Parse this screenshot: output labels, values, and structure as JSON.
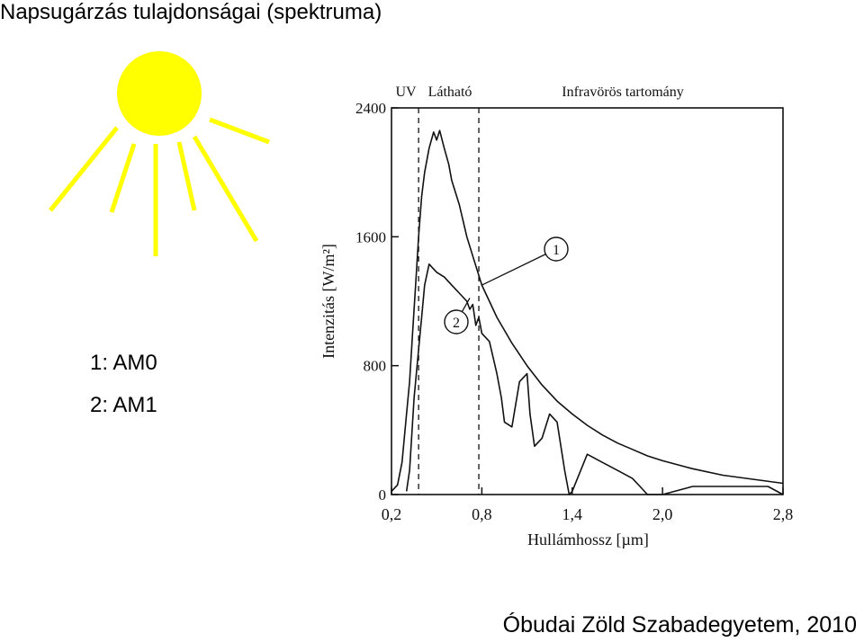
{
  "slide": {
    "title": "Napsugárzás tulajdonságai (spektruma)",
    "legend": [
      "1: AM0",
      "2: AM1"
    ],
    "footer": "Óbudai Zöld Szabadegyetem, 2010"
  },
  "sun": {
    "icon": "sun-icon",
    "disc_color": "#ffff00",
    "ray_color": "#ffff00"
  },
  "chart_data": {
    "type": "line",
    "title": "",
    "xlabel": "Hullámhossz [µm]",
    "ylabel": "Intenzitás [W/m²]",
    "xlim": [
      0.2,
      2.8
    ],
    "ylim": [
      0,
      2400
    ],
    "xticks": [
      0.2,
      0.8,
      1.4,
      2.0,
      2.8
    ],
    "xtick_labels": [
      "0,2",
      "0,8",
      "1,4",
      "2,0",
      "2,8"
    ],
    "yticks": [
      0,
      800,
      1600,
      2400
    ],
    "ytick_labels": [
      "0",
      "800",
      "1600",
      "2400"
    ],
    "regions": [
      {
        "label": "UV",
        "from": 0.2,
        "to": 0.38
      },
      {
        "label": "Látható",
        "from": 0.38,
        "to": 0.78
      },
      {
        "label": "Infravörös tartomány",
        "from": 0.78,
        "to": 2.8
      }
    ],
    "region_boundaries": [
      0.38,
      0.78
    ],
    "series": [
      {
        "name": "1",
        "x": [
          0.2,
          0.24,
          0.27,
          0.3,
          0.32,
          0.34,
          0.36,
          0.38,
          0.4,
          0.42,
          0.45,
          0.48,
          0.5,
          0.52,
          0.55,
          0.58,
          0.6,
          0.65,
          0.7,
          0.75,
          0.8,
          0.9,
          1.0,
          1.1,
          1.2,
          1.3,
          1.4,
          1.5,
          1.6,
          1.7,
          1.8,
          1.9,
          2.0,
          2.2,
          2.4,
          2.6,
          2.8
        ],
        "y": [
          20,
          60,
          200,
          500,
          700,
          1000,
          1300,
          1600,
          1850,
          2000,
          2150,
          2250,
          2200,
          2260,
          2150,
          2050,
          1950,
          1800,
          1600,
          1450,
          1300,
          1100,
          940,
          800,
          680,
          580,
          500,
          430,
          370,
          320,
          280,
          240,
          210,
          160,
          120,
          95,
          70
        ]
      },
      {
        "name": "2",
        "x": [
          0.3,
          0.32,
          0.35,
          0.38,
          0.4,
          0.42,
          0.45,
          0.48,
          0.5,
          0.55,
          0.6,
          0.65,
          0.7,
          0.72,
          0.74,
          0.76,
          0.78,
          0.8,
          0.85,
          0.9,
          0.93,
          0.95,
          1.0,
          1.05,
          1.1,
          1.12,
          1.15,
          1.2,
          1.25,
          1.3,
          1.35,
          1.38,
          1.4,
          1.5,
          1.6,
          1.7,
          1.8,
          1.85,
          1.9,
          2.0,
          2.2,
          2.4,
          2.6,
          2.7,
          2.8
        ],
        "y": [
          20,
          150,
          600,
          900,
          1100,
          1300,
          1430,
          1400,
          1380,
          1350,
          1300,
          1250,
          1200,
          1150,
          1180,
          1050,
          1100,
          1000,
          950,
          750,
          600,
          450,
          420,
          700,
          750,
          500,
          300,
          350,
          500,
          450,
          150,
          0,
          20,
          250,
          200,
          150,
          100,
          50,
          0,
          0,
          50,
          50,
          50,
          50,
          0
        ]
      }
    ],
    "annotations": [
      {
        "label": "1",
        "x": 0.8,
        "y": 1300
      },
      {
        "label": "2",
        "x": 0.72,
        "y": 1220
      }
    ]
  }
}
